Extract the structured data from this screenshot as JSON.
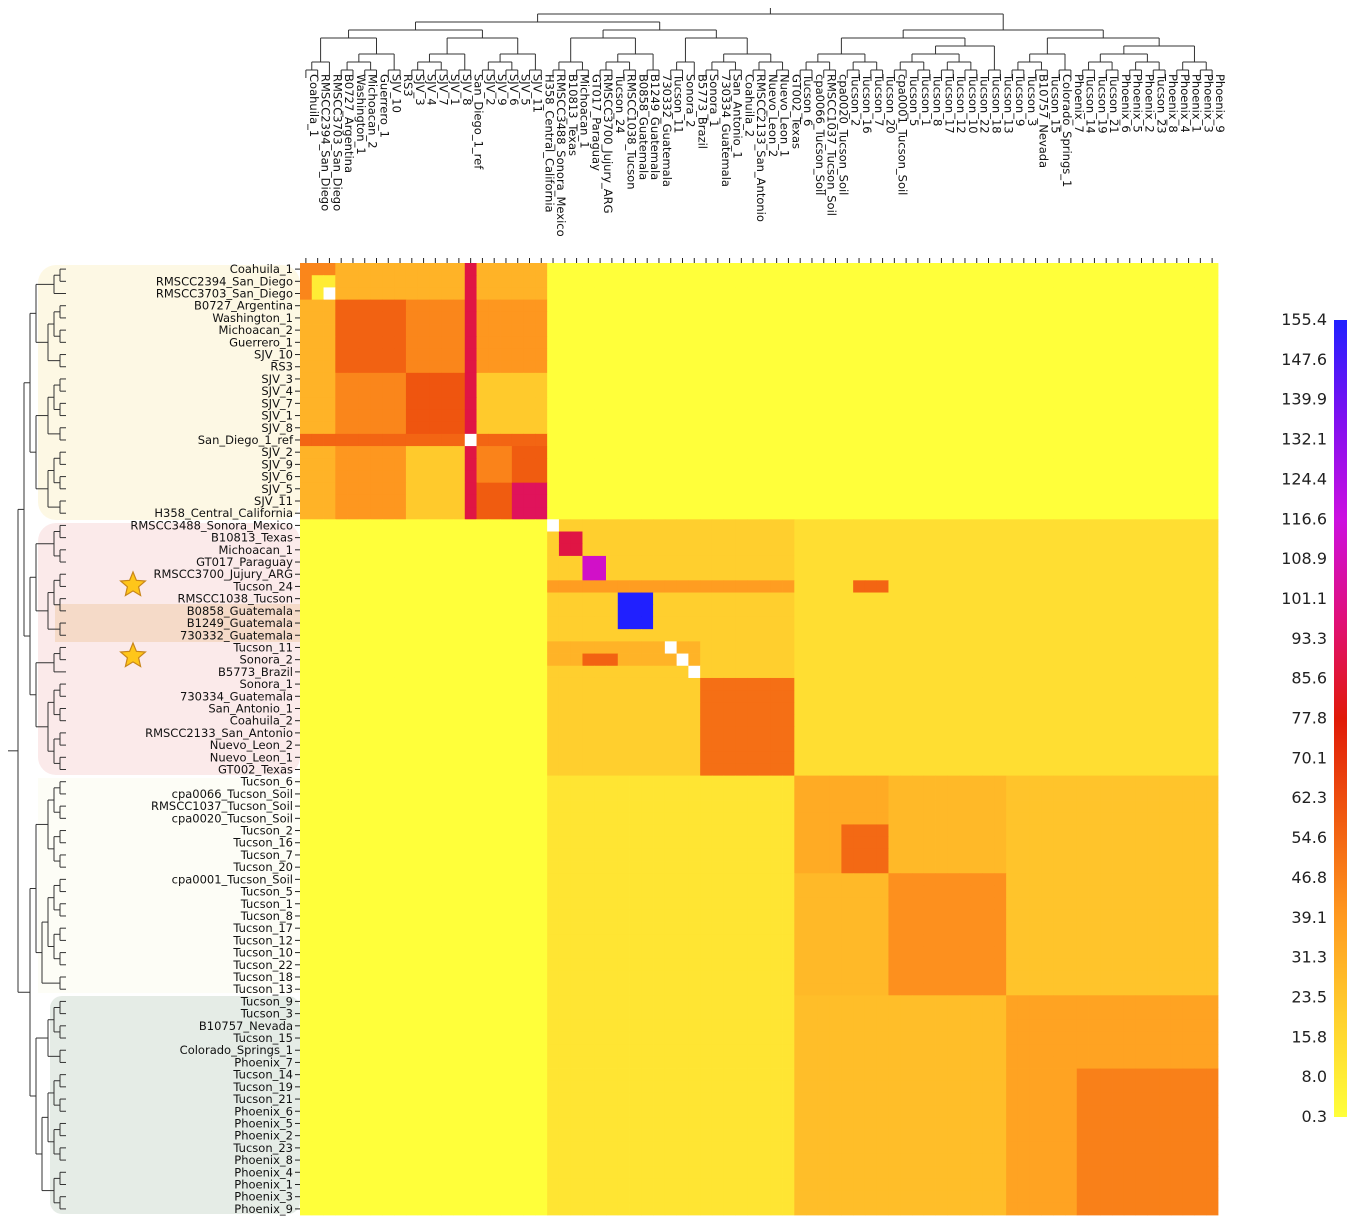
{
  "chart_data": {
    "type": "heatmap",
    "title": "",
    "xlabel": "",
    "ylabel": "",
    "labels": [
      "Coahuila_1",
      "RMSCC2394_San_Diego",
      "RMSCC3703_San_Diego",
      "B0727_Argentina",
      "Washington_1",
      "Michoacan_2",
      "Guerrero_1",
      "SJV_10",
      "RS3",
      "SJV_3",
      "SJV_4",
      "SJV_7",
      "SJV_1",
      "SJV_8",
      "San_Diego_1_ref",
      "SJV_2",
      "SJV_9",
      "SJV_6",
      "SJV_5",
      "SJV_11",
      "H358_Central_California",
      "RMSCC3488_Sonora_Mexico",
      "B10813_Texas",
      "Michoacan_1",
      "GT017_Paraguay",
      "RMSCC3700_Jujury_ARG",
      "Tucson_24",
      "RMSCC1038_Tucson",
      "B0858_Guatemala",
      "B1249_Guatemala",
      "730332_Guatemala",
      "Tucson_11",
      "Sonora_2",
      "B5773_Brazil",
      "Sonora_1",
      "730334_Guatemala",
      "San_Antonio_1",
      "Coahuila_2",
      "RMSCC2133_San_Antonio",
      "Nuevo_Leon_2",
      "Nuevo_Leon_1",
      "GT002_Texas",
      "Tucson_6",
      "cpa0066_Tucson_Soil",
      "RMSCC1037_Tucson_Soil",
      "cpa0020_Tucson_Soil",
      "Tucson_2",
      "Tucson_16",
      "Tucson_7",
      "Tucson_20",
      "cpa0001_Tucson_Soil",
      "Tucson_5",
      "Tucson_1",
      "Tucson_8",
      "Tucson_17",
      "Tucson_12",
      "Tucson_10",
      "Tucson_22",
      "Tucson_18",
      "Tucson_13",
      "Tucson_9",
      "Tucson_3",
      "B10757_Nevada",
      "Tucson_15",
      "Colorado_Springs_1",
      "Phoenix_7",
      "Tucson_14",
      "Tucson_19",
      "Tucson_21",
      "Phoenix_6",
      "Phoenix_5",
      "Phoenix_2",
      "Tucson_23",
      "Phoenix_8",
      "Phoenix_4",
      "Phoenix_1",
      "Phoenix_3",
      "Phoenix_9"
    ],
    "colorbar": {
      "min": 0.3,
      "max": 155.4,
      "ticks": [
        "155.4",
        "147.6",
        "139.9",
        "132.1",
        "124.4",
        "116.6",
        "108.9",
        "101.1",
        "93.3",
        "85.6",
        "77.8",
        "70.1",
        "62.3",
        "54.6",
        "46.8",
        "39.1",
        "31.3",
        "23.5",
        "15.8",
        "8.0",
        "0.3"
      ],
      "colors": [
        "#ffff3a",
        "#ffd02e",
        "#ff9a20",
        "#f05a10",
        "#e01a08",
        "#e0107a",
        "#cc10e0",
        "#8010f0",
        "#2020ff"
      ]
    },
    "blocks": [
      {
        "rows": [
          0,
          21
        ],
        "cols": [
          0,
          21
        ],
        "value": 45
      },
      {
        "rows": [
          21,
          42
        ],
        "cols": [
          21,
          42
        ],
        "value": 20
      },
      {
        "rows": [
          42,
          78
        ],
        "cols": [
          42,
          78
        ],
        "value": 20
      },
      {
        "rows": [
          0,
          21
        ],
        "cols": [
          21,
          78
        ],
        "value": 0.5
      },
      {
        "rows": [
          21,
          78
        ],
        "cols": [
          0,
          21
        ],
        "value": 0.5
      },
      {
        "rows": [
          21,
          42
        ],
        "cols": [
          42,
          78
        ],
        "value": 14
      },
      {
        "rows": [
          42,
          78
        ],
        "cols": [
          21,
          42
        ],
        "value": 11
      },
      {
        "rows": [
          1,
          3
        ],
        "cols": [
          1,
          3
        ],
        "value": 8
      },
      {
        "rows": [
          0,
          3
        ],
        "cols": [
          3,
          21
        ],
        "value": 30
      },
      {
        "rows": [
          3,
          21
        ],
        "cols": [
          0,
          3
        ],
        "value": 30
      },
      {
        "rows": [
          3,
          9
        ],
        "cols": [
          3,
          9
        ],
        "value": 56
      },
      {
        "rows": [
          9,
          15
        ],
        "cols": [
          9,
          15
        ],
        "value": 60
      },
      {
        "rows": [
          15,
          21
        ],
        "cols": [
          15,
          21
        ],
        "value": 58
      },
      {
        "rows": [
          18,
          21
        ],
        "cols": [
          18,
          21
        ],
        "value": 92
      },
      {
        "rows": [
          15,
          18
        ],
        "cols": [
          15,
          18
        ],
        "value": 46
      },
      {
        "rows": [
          9,
          14
        ],
        "cols": [
          15,
          21
        ],
        "value": 22
      },
      {
        "rows": [
          15,
          21
        ],
        "cols": [
          9,
          14
        ],
        "value": 22
      },
      {
        "rows": [
          3,
          9
        ],
        "cols": [
          9,
          15
        ],
        "value": 45
      },
      {
        "rows": [
          9,
          15
        ],
        "cols": [
          3,
          9
        ],
        "value": 45
      },
      {
        "rows": [
          3,
          9
        ],
        "cols": [
          15,
          21
        ],
        "value": 40
      },
      {
        "rows": [
          15,
          21
        ],
        "cols": [
          3,
          9
        ],
        "value": 40
      },
      {
        "rows": [
          0,
          21
        ],
        "cols": [
          14,
          15
        ],
        "value": 88
      },
      {
        "rows": [
          14,
          15
        ],
        "cols": [
          0,
          21
        ],
        "value": 55
      },
      {
        "rows": [
          22,
          24
        ],
        "cols": [
          22,
          24
        ],
        "value": 88
      },
      {
        "rows": [
          21,
          25
        ],
        "cols": [
          25,
          34
        ],
        "value": 20
      },
      {
        "rows": [
          24,
          26
        ],
        "cols": [
          24,
          26
        ],
        "value": 112
      },
      {
        "rows": [
          26,
          27
        ],
        "cols": [
          21,
          42
        ],
        "value": 38
      },
      {
        "rows": [
          26,
          27
        ],
        "cols": [
          47,
          50
        ],
        "value": 55
      },
      {
        "rows": [
          27,
          30
        ],
        "cols": [
          27,
          30
        ],
        "value": 155.4
      },
      {
        "rows": [
          31,
          33
        ],
        "cols": [
          21,
          34
        ],
        "value": 30
      },
      {
        "rows": [
          32,
          33
        ],
        "cols": [
          24,
          27
        ],
        "value": 56
      },
      {
        "rows": [
          34,
          42
        ],
        "cols": [
          34,
          42
        ],
        "value": 52
      },
      {
        "rows": [
          42,
          50
        ],
        "cols": [
          42,
          50
        ],
        "value": 33
      },
      {
        "rows": [
          46,
          50
        ],
        "cols": [
          46,
          50
        ],
        "value": 54
      },
      {
        "rows": [
          50,
          60
        ],
        "cols": [
          50,
          60
        ],
        "value": 42
      },
      {
        "rows": [
          60,
          78
        ],
        "cols": [
          60,
          78
        ],
        "value": 36
      },
      {
        "rows": [
          66,
          78
        ],
        "cols": [
          66,
          78
        ],
        "value": 47
      },
      {
        "rows": [
          50,
          60
        ],
        "cols": [
          42,
          50
        ],
        "value": 28
      },
      {
        "rows": [
          42,
          50
        ],
        "cols": [
          50,
          60
        ],
        "value": 28
      },
      {
        "rows": [
          60,
          78
        ],
        "cols": [
          42,
          60
        ],
        "value": 26
      },
      {
        "rows": [
          42,
          60
        ],
        "cols": [
          60,
          78
        ],
        "value": 24
      }
    ],
    "diagonal_white": [
      2,
      14,
      21,
      31,
      32,
      33
    ]
  }
}
